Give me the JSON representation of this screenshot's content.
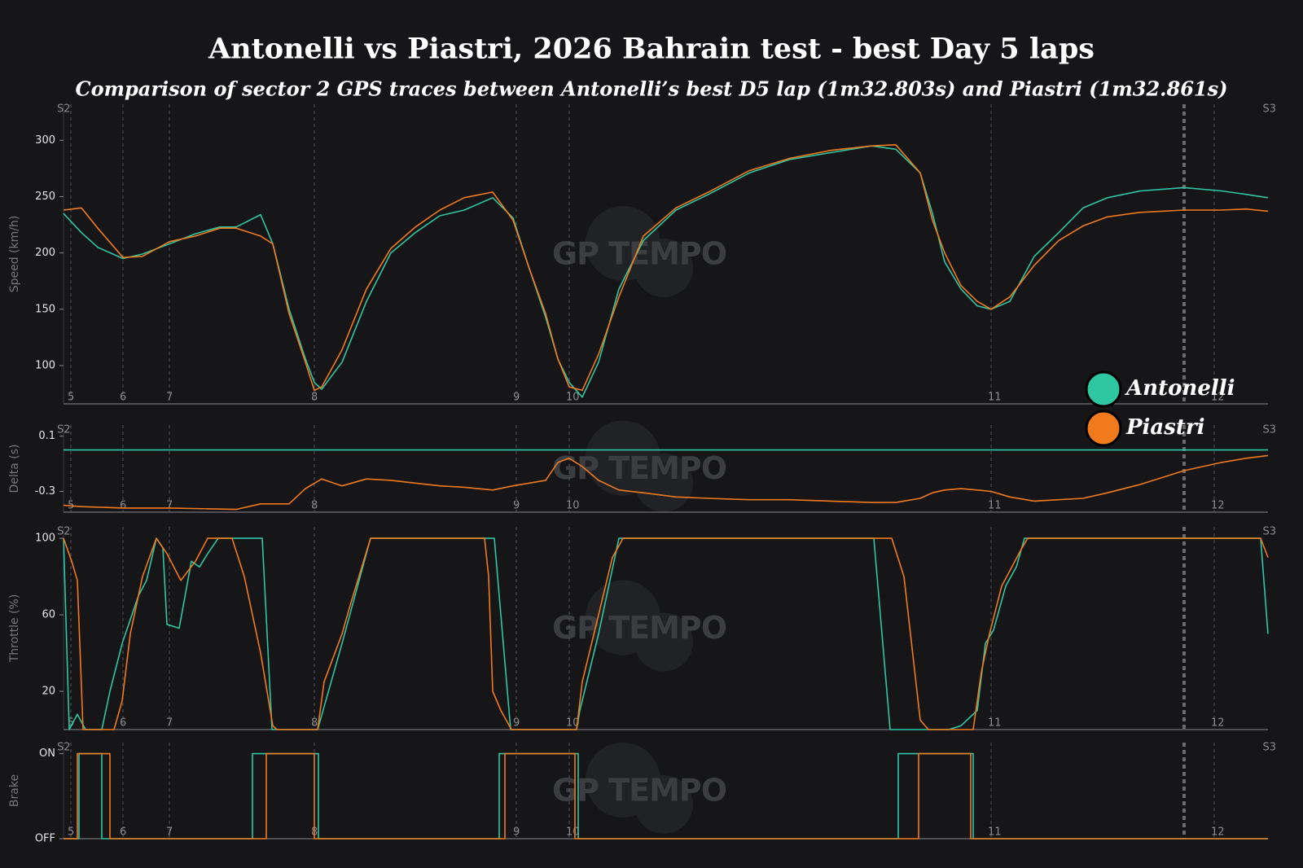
{
  "title": "Antonelli vs Piastri, 2026 Bahrain test - best Day 5 laps",
  "subtitle": "Comparison of sector 2 GPS traces between Antonelli’s best D5 lap (1m32.803s) and Piastri (1m32.861s)",
  "watermark": "GP TEMPO",
  "sectors": [
    "S2",
    "S3"
  ],
  "turns": [
    {
      "label": "5",
      "x": 9
    },
    {
      "label": "6",
      "x": 73
    },
    {
      "label": "7",
      "x": 130
    },
    {
      "label": "8",
      "x": 308
    },
    {
      "label": "9",
      "x": 556
    },
    {
      "label": "10",
      "x": 621
    },
    {
      "label": "11",
      "x": 1139
    },
    {
      "label": "12",
      "x": 1413
    }
  ],
  "highlight_x": 1376,
  "xlim": [
    0,
    1479
  ],
  "chart_data": [
    {
      "type": "line",
      "ylabel": "Speed (km/h)",
      "ylim": [
        66,
        332
      ],
      "yticks": [
        100,
        150,
        200,
        250,
        300
      ],
      "x": [
        0,
        22,
        42,
        73,
        97,
        130,
        162,
        192,
        212,
        242,
        257,
        277,
        297,
        308,
        317,
        342,
        372,
        402,
        432,
        462,
        492,
        527,
        552,
        572,
        592,
        607,
        621,
        637,
        657,
        682,
        712,
        752,
        792,
        842,
        892,
        942,
        992,
        1022,
        1052,
        1067,
        1082,
        1102,
        1122,
        1139,
        1162,
        1192,
        1222,
        1252,
        1282,
        1322,
        1376,
        1422,
        1452,
        1479
      ],
      "series": [
        {
          "name": "Antonelli",
          "color": "#2fc6a2",
          "values": [
            235,
            218,
            205,
            195,
            199,
            208,
            217,
            223,
            223,
            234,
            208,
            150,
            106,
            85,
            79,
            103,
            157,
            200,
            218,
            233,
            238,
            249,
            231,
            186,
            143,
            106,
            85,
            72,
            103,
            168,
            211,
            238,
            252,
            271,
            283,
            289,
            295,
            292,
            271,
            235,
            192,
            168,
            153,
            150,
            157,
            197,
            218,
            240,
            249,
            255,
            258,
            255,
            252,
            249
          ]
        },
        {
          "name": "Piastri",
          "color": "#f07a1c",
          "values": [
            238,
            240,
            222,
            196,
            197,
            210,
            215,
            222,
            222,
            215,
            208,
            146,
            103,
            78,
            81,
            114,
            168,
            204,
            223,
            238,
            249,
            254,
            229,
            186,
            146,
            106,
            81,
            78,
            110,
            161,
            215,
            240,
            254,
            273,
            284,
            291,
            295,
            296,
            271,
            229,
            200,
            171,
            157,
            150,
            161,
            189,
            211,
            224,
            232,
            236,
            238,
            238,
            239,
            237
          ]
        }
      ]
    },
    {
      "type": "line",
      "ylabel": "Delta (s)",
      "ylim": [
        -0.45,
        0.18
      ],
      "yticks": [
        0.1,
        -0.3
      ],
      "series": [
        {
          "color": "#2fc6a2",
          "x": [
            0,
            1479
          ],
          "values": [
            0,
            0
          ]
        },
        {
          "color": "#f07a1c",
          "x": [
            0,
            22,
            73,
            130,
            212,
            242,
            277,
            297,
            317,
            342,
            372,
            402,
            432,
            462,
            492,
            527,
            552,
            572,
            592,
            607,
            621,
            637,
            657,
            682,
            712,
            752,
            792,
            842,
            892,
            942,
            992,
            1022,
            1052,
            1067,
            1082,
            1102,
            1122,
            1139,
            1162,
            1192,
            1222,
            1252,
            1282,
            1322,
            1376,
            1422,
            1452,
            1479
          ],
          "values": [
            -0.4,
            -0.41,
            -0.42,
            -0.42,
            -0.43,
            -0.39,
            -0.39,
            -0.28,
            -0.21,
            -0.26,
            -0.21,
            -0.22,
            -0.24,
            -0.26,
            -0.27,
            -0.29,
            -0.26,
            -0.24,
            -0.22,
            -0.09,
            -0.06,
            -0.12,
            -0.22,
            -0.29,
            -0.31,
            -0.34,
            -0.35,
            -0.36,
            -0.36,
            -0.37,
            -0.38,
            -0.38,
            -0.35,
            -0.31,
            -0.29,
            -0.28,
            -0.29,
            -0.3,
            -0.34,
            -0.37,
            -0.36,
            -0.35,
            -0.31,
            -0.25,
            -0.15,
            -0.09,
            -0.06,
            -0.04
          ]
        }
      ]
    },
    {
      "type": "line",
      "ylabel": "Throttle (%)",
      "ylim": [
        0,
        106
      ],
      "yticks": [
        20,
        60,
        100
      ],
      "series": [
        {
          "color": "#2fc6a2",
          "x": [
            0,
            7,
            17,
            27,
            47,
            57,
            72,
            92,
            102,
            114,
            122,
            127,
            142,
            157,
            167,
            177,
            190,
            244,
            256,
            312,
            322,
            342,
            377,
            529,
            549,
            630,
            634,
            657,
            682,
            995,
            1015,
            1087,
            1102,
            1122,
            1132,
            1142,
            1157,
            1170,
            1180,
            1470,
            1479
          ],
          "values": [
            100,
            0,
            8,
            0,
            0,
            20,
            45,
            70,
            78,
            100,
            95,
            55,
            53,
            88,
            85,
            92,
            100,
            100,
            0,
            0,
            15,
            45,
            100,
            100,
            0,
            0,
            10,
            50,
            100,
            100,
            0,
            0,
            2,
            10,
            45,
            52,
            75,
            85,
            100,
            100,
            50
          ]
        },
        {
          "color": "#f07a1c",
          "x": [
            0,
            10,
            17,
            24,
            62,
            72,
            82,
            97,
            114,
            127,
            144,
            162,
            177,
            207,
            222,
            242,
            257,
            262,
            312,
            320,
            342,
            352,
            377,
            517,
            522,
            527,
            537,
            550,
            630,
            637,
            657,
            674,
            687,
            1017,
            1032,
            1052,
            1062,
            1117,
            1127,
            1137,
            1152,
            1177,
            1184,
            1470,
            1479
          ],
          "values": [
            100,
            88,
            78,
            0,
            0,
            15,
            50,
            80,
            100,
            92,
            78,
            88,
            100,
            100,
            80,
            40,
            2,
            0,
            0,
            25,
            50,
            65,
            100,
            100,
            80,
            20,
            10,
            0,
            0,
            25,
            60,
            90,
            100,
            100,
            80,
            5,
            0,
            0,
            30,
            50,
            75,
            95,
            100,
            100,
            90
          ]
        }
      ]
    },
    {
      "type": "line",
      "ylabel": "Brake",
      "ylim": [
        0,
        1.13
      ],
      "yticks": [
        {
          "value": 0,
          "label": "OFF"
        },
        {
          "value": 1,
          "label": "ON"
        }
      ],
      "series": [
        {
          "color": "#2fc6a2",
          "x": [
            0,
            19,
            19,
            47,
            47,
            232,
            232,
            313,
            313,
            535,
            535,
            632,
            632,
            1025,
            1025,
            1117,
            1117,
            1479
          ],
          "values": [
            0,
            0,
            1,
            1,
            0,
            0,
            1,
            1,
            0,
            0,
            1,
            1,
            0,
            0,
            1,
            1,
            0,
            0
          ]
        },
        {
          "color": "#f07a1c",
          "x": [
            0,
            17,
            17,
            57,
            57,
            249,
            249,
            308,
            308,
            542,
            542,
            628,
            628,
            1050,
            1050,
            1114,
            1114,
            1479
          ],
          "values": [
            0,
            0,
            1,
            1,
            0,
            0,
            1,
            1,
            0,
            0,
            1,
            1,
            0,
            0,
            1,
            1,
            0,
            0
          ]
        }
      ]
    }
  ]
}
